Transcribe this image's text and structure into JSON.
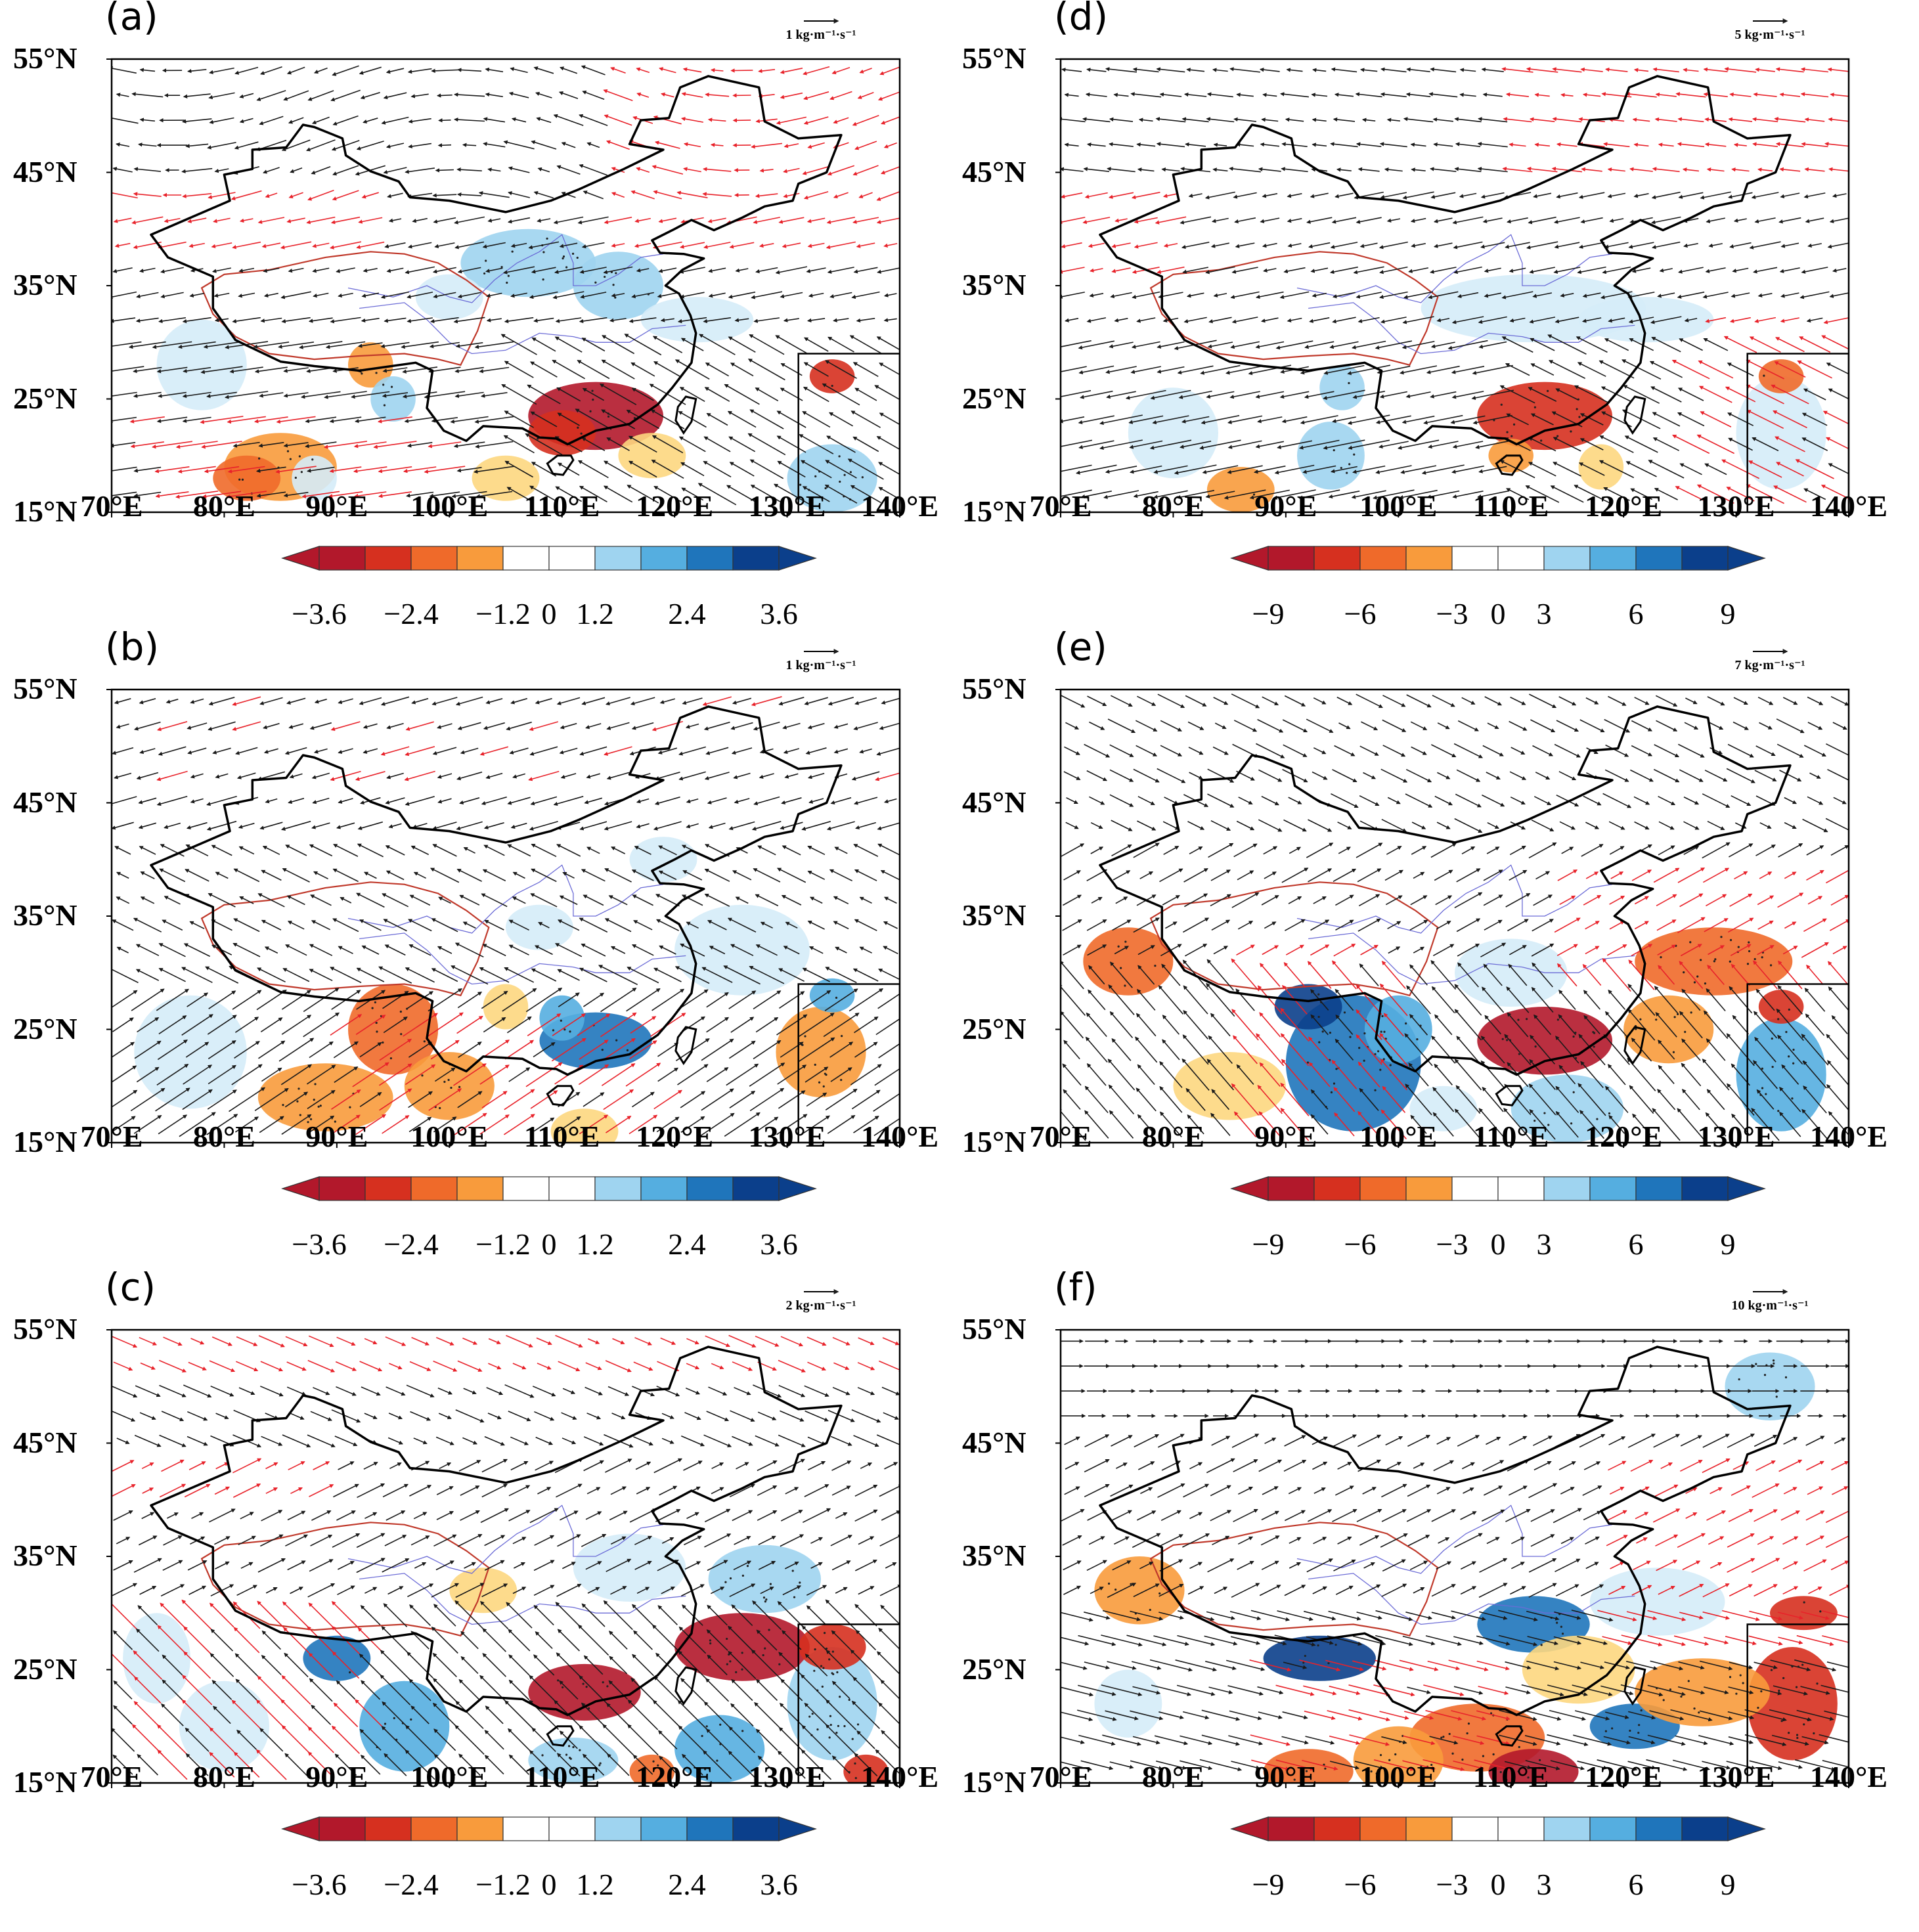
{
  "colors": {
    "neg": [
      "#b2182b",
      "#d6301f",
      "#ef6a2a",
      "#f89b3c",
      "#fdd77f"
    ],
    "pos": [
      "#d5ecf8",
      "#9fd4f0",
      "#55aee0",
      "#1f75bb",
      "#0b3f8b"
    ],
    "vector_sig": "#e8222a",
    "vector_nonsig": "#1a1a1a",
    "plateau": "#c0392b",
    "river": "#6b6bd6"
  },
  "axes": {
    "lat_labels": [
      "55°N",
      "45°N",
      "35°N",
      "25°N",
      "15°N"
    ],
    "lon_labels": [
      "70°E",
      "80°E",
      "90°E",
      "100°E",
      "110°E",
      "120°E",
      "130°E",
      "140°E"
    ]
  },
  "colorbar_left": {
    "ticks": [
      "−3.6",
      "−2.4",
      "−1.2",
      "0",
      "1.2",
      "2.4",
      "3.6"
    ]
  },
  "colorbar_right": {
    "ticks": [
      "−9",
      "−6",
      "−3",
      "0",
      "3",
      "6",
      "9"
    ]
  },
  "panels": [
    {
      "label": "(a)",
      "ref_vector": "1 kg·m⁻¹·s⁻¹",
      "scale": "left",
      "seed": 11
    },
    {
      "label": "(b)",
      "ref_vector": "1 kg·m⁻¹·s⁻¹",
      "scale": "left",
      "seed": 23
    },
    {
      "label": "(c)",
      "ref_vector": "2 kg·m⁻¹·s⁻¹",
      "scale": "left",
      "seed": 37
    },
    {
      "label": "(d)",
      "ref_vector": "5 kg·m⁻¹·s⁻¹",
      "scale": "right",
      "seed": 41
    },
    {
      "label": "(e)",
      "ref_vector": "7 kg·m⁻¹·s⁻¹",
      "scale": "right",
      "seed": 53
    },
    {
      "label": "(f)",
      "ref_vector": "10 kg·m⁻¹·s⁻¹",
      "scale": "right",
      "seed": 67
    }
  ]
}
